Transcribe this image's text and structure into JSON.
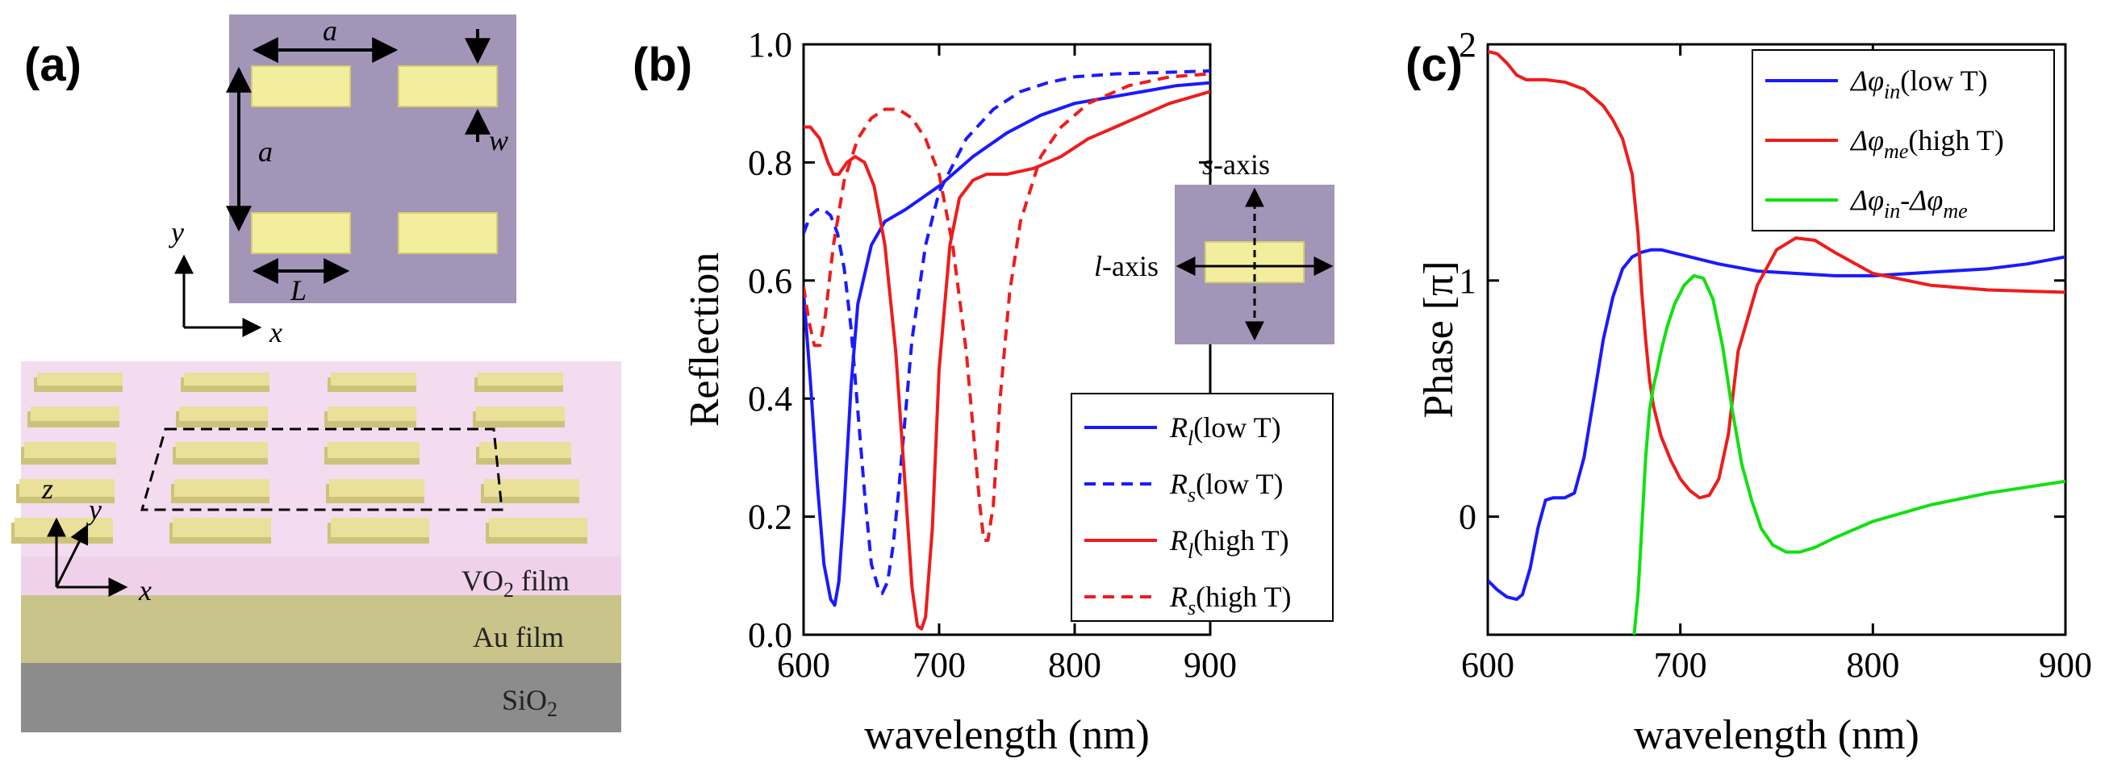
{
  "colors": {
    "blue": "#1a1aff",
    "red": "#ee1c1c",
    "green": "#11e011",
    "purple": "#a395b8",
    "gold": "#f3ee9e",
    "pink": "#f3dcef",
    "au": "#c9c48a",
    "sio2": "#8c8c8c"
  },
  "panel_a": {
    "label": "(a)",
    "dim_a_top": "a",
    "dim_a_side": "a",
    "dim_w": "w",
    "dim_L": "L",
    "axis_y": "y",
    "axis_x": "x",
    "axis3d_z": "z",
    "axis3d_y": "y",
    "axis3d_x": "x",
    "vo2_main": "VO",
    "vo2_sub": "2",
    "vo2_rest": " film",
    "au_label": "Au film",
    "sio2_main": "SiO",
    "sio2_sub": "2"
  },
  "chart_data": [
    {
      "type": "line",
      "panel_label": "(b)",
      "xlabel": "wavelength (nm)",
      "ylabel": "Reflection",
      "xlim": [
        600,
        900
      ],
      "ylim": [
        0,
        1
      ],
      "xticks": [
        "600",
        "700",
        "800",
        "900"
      ],
      "yticks": [
        "0.0",
        "0.2",
        "0.4",
        "0.6",
        "0.8",
        "1.0"
      ],
      "xtick_values": [
        600,
        700,
        800,
        900
      ],
      "ytick_values": [
        0,
        0.2,
        0.4,
        0.6,
        0.8,
        1.0
      ],
      "legend_position": "bottom-right",
      "inset": {
        "s_axis": "s-axis",
        "s_main": "s",
        "s_rest": "-axis",
        "l_main": "l",
        "l_rest": "-axis"
      },
      "series": [
        {
          "name": "R_l(low T)",
          "sym": "R",
          "sub": "l",
          "rest": "(low T)",
          "color": "#1a1aff",
          "dash": false,
          "x": [
            600,
            605,
            610,
            615,
            620,
            623,
            626,
            630,
            635,
            640,
            650,
            660,
            675,
            700,
            725,
            750,
            775,
            800,
            825,
            850,
            875,
            900
          ],
          "y": [
            0.58,
            0.43,
            0.26,
            0.12,
            0.06,
            0.05,
            0.09,
            0.22,
            0.42,
            0.56,
            0.66,
            0.7,
            0.72,
            0.76,
            0.81,
            0.85,
            0.88,
            0.9,
            0.91,
            0.92,
            0.93,
            0.935
          ]
        },
        {
          "name": "R_s(low T)",
          "sym": "R",
          "sub": "s",
          "rest": "(low T)",
          "color": "#1a1aff",
          "dash": true,
          "x": [
            600,
            605,
            610,
            615,
            620,
            625,
            630,
            635,
            640,
            645,
            650,
            655,
            658,
            662,
            666,
            670,
            675,
            680,
            690,
            700,
            720,
            740,
            760,
            780,
            800,
            830,
            860,
            900
          ],
          "y": [
            0.68,
            0.71,
            0.72,
            0.72,
            0.71,
            0.68,
            0.62,
            0.52,
            0.38,
            0.24,
            0.12,
            0.08,
            0.07,
            0.09,
            0.15,
            0.24,
            0.37,
            0.5,
            0.66,
            0.75,
            0.84,
            0.89,
            0.92,
            0.935,
            0.945,
            0.95,
            0.952,
            0.955
          ]
        },
        {
          "name": "R_l(high T)",
          "sym": "R",
          "sub": "l",
          "rest": "(high T)",
          "color": "#ee1c1c",
          "dash": false,
          "x": [
            600,
            605,
            612,
            618,
            622,
            626,
            632,
            638,
            645,
            652,
            660,
            668,
            675,
            680,
            684,
            687,
            690,
            695,
            700,
            708,
            715,
            725,
            735,
            750,
            770,
            790,
            810,
            830,
            850,
            870,
            900
          ],
          "y": [
            0.86,
            0.86,
            0.84,
            0.8,
            0.78,
            0.78,
            0.8,
            0.81,
            0.8,
            0.76,
            0.66,
            0.48,
            0.25,
            0.08,
            0.015,
            0.01,
            0.03,
            0.18,
            0.45,
            0.66,
            0.74,
            0.77,
            0.78,
            0.78,
            0.79,
            0.81,
            0.84,
            0.86,
            0.88,
            0.9,
            0.92
          ]
        },
        {
          "name": "R_s(high T)",
          "sym": "R",
          "sub": "s",
          "rest": "(high T)",
          "color": "#ee1c1c",
          "dash": true,
          "x": [
            600,
            604,
            608,
            612,
            616,
            622,
            630,
            640,
            650,
            660,
            670,
            680,
            690,
            700,
            710,
            720,
            725,
            730,
            733,
            736,
            740,
            745,
            752,
            760,
            775,
            790,
            810,
            840,
            870,
            900
          ],
          "y": [
            0.59,
            0.53,
            0.49,
            0.49,
            0.54,
            0.66,
            0.77,
            0.84,
            0.875,
            0.89,
            0.89,
            0.875,
            0.84,
            0.78,
            0.66,
            0.48,
            0.35,
            0.22,
            0.16,
            0.16,
            0.22,
            0.4,
            0.58,
            0.7,
            0.81,
            0.86,
            0.9,
            0.93,
            0.945,
            0.95
          ]
        }
      ]
    },
    {
      "type": "line",
      "panel_label": "(c)",
      "xlabel": "wavelength (nm)",
      "ylabel": "Phase [π]",
      "xlim": [
        600,
        900
      ],
      "ylim": [
        -0.5,
        2
      ],
      "xticks": [
        "600",
        "700",
        "800",
        "900"
      ],
      "yticks": [
        "0",
        "1",
        "2"
      ],
      "xtick_values": [
        600,
        700,
        800,
        900
      ],
      "ytick_values": [
        0,
        1,
        2
      ],
      "legend_position": "top-right",
      "series": [
        {
          "name": "Δφ_in(low T)",
          "sym": "Δφ",
          "sub": "in",
          "rest": "(low T)",
          "color": "#1a1aff",
          "x": [
            600,
            605,
            610,
            615,
            618,
            622,
            626,
            630,
            634,
            640,
            645,
            650,
            655,
            660,
            665,
            670,
            675,
            680,
            685,
            690,
            700,
            720,
            740,
            760,
            780,
            800,
            820,
            840,
            860,
            880,
            900
          ],
          "y": [
            -0.27,
            -0.31,
            -0.34,
            -0.35,
            -0.33,
            -0.22,
            -0.05,
            0.07,
            0.08,
            0.08,
            0.1,
            0.25,
            0.5,
            0.75,
            0.93,
            1.05,
            1.1,
            1.12,
            1.13,
            1.13,
            1.11,
            1.07,
            1.04,
            1.03,
            1.02,
            1.02,
            1.03,
            1.04,
            1.05,
            1.07,
            1.1
          ]
        },
        {
          "name": "Δφ_me(high T)",
          "sym": "Δφ",
          "sub": "me",
          "rest": "(high T)",
          "color": "#ee1c1c",
          "x": [
            600,
            605,
            610,
            615,
            620,
            630,
            640,
            650,
            660,
            665,
            670,
            675,
            678,
            680,
            682,
            684,
            686,
            690,
            695,
            700,
            705,
            710,
            715,
            720,
            725,
            730,
            740,
            750,
            760,
            770,
            780,
            800,
            830,
            860,
            900
          ],
          "y": [
            1.97,
            1.96,
            1.92,
            1.87,
            1.85,
            1.85,
            1.84,
            1.81,
            1.74,
            1.68,
            1.6,
            1.45,
            1.2,
            0.95,
            0.75,
            0.58,
            0.47,
            0.34,
            0.24,
            0.16,
            0.11,
            0.08,
            0.09,
            0.16,
            0.35,
            0.7,
            0.98,
            1.13,
            1.18,
            1.17,
            1.12,
            1.03,
            0.98,
            0.96,
            0.95
          ]
        },
        {
          "name": "Δφ_in-Δφ_me",
          "sym": "Δφ",
          "sub": "in",
          "mid": "-Δφ",
          "sub2": "me",
          "rest": "",
          "color": "#11e011",
          "x": [
            676,
            678,
            680,
            682,
            684,
            686,
            688,
            690,
            693,
            697,
            702,
            707,
            712,
            717,
            722,
            727,
            732,
            737,
            742,
            748,
            755,
            762,
            770,
            780,
            800,
            830,
            860,
            900
          ],
          "y": [
            -0.5,
            -0.33,
            -0.05,
            0.25,
            0.45,
            0.55,
            0.62,
            0.7,
            0.8,
            0.9,
            0.98,
            1.02,
            1.01,
            0.92,
            0.72,
            0.45,
            0.22,
            0.07,
            -0.05,
            -0.12,
            -0.15,
            -0.15,
            -0.13,
            -0.09,
            -0.02,
            0.05,
            0.1,
            0.15
          ]
        }
      ]
    }
  ]
}
